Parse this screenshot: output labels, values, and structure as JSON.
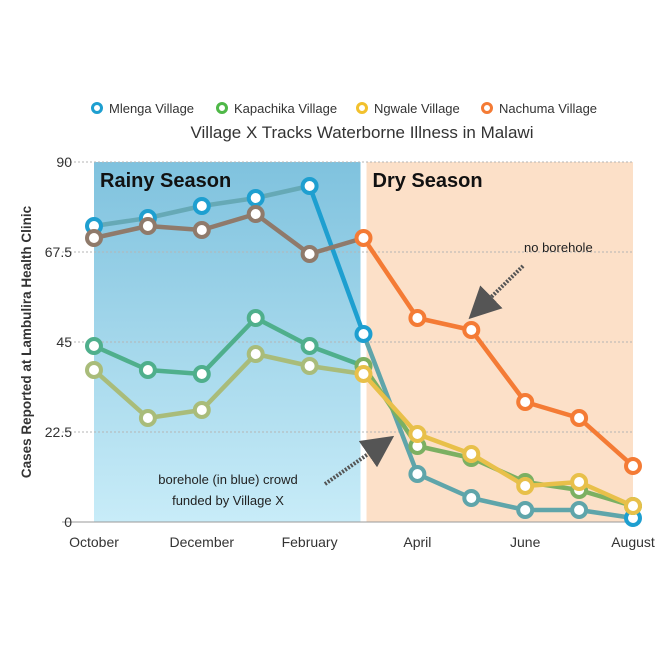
{
  "chart_data": {
    "type": "line",
    "title": "Village X Tracks Waterborne Illness in Malawi",
    "xlabel": "",
    "ylabel": "Cases Reported at Lambulira Health Clinic",
    "ylim": [
      0,
      90
    ],
    "yticks": [
      "0",
      "22.5",
      "45",
      "67.5",
      "90"
    ],
    "x": [
      "October",
      "",
      "December",
      "",
      "February",
      "",
      "April",
      "",
      "June",
      "",
      "August"
    ],
    "xtick_labels": [
      "October",
      "December",
      "February",
      "April",
      "June",
      "August"
    ],
    "grid": true,
    "legend_position": "top",
    "series": [
      {
        "name": "Mlenga Village",
        "color": "#1E9FD0",
        "values": [
          74,
          76,
          79,
          81,
          84,
          47,
          12,
          6,
          3,
          3,
          1
        ]
      },
      {
        "name": "Kapachika Village",
        "color": "#4FB848",
        "values": [
          44,
          38,
          37,
          51,
          44,
          39,
          19,
          16,
          10,
          8,
          4
        ]
      },
      {
        "name": "Ngwale Village",
        "color": "#F2C12E",
        "values": [
          38,
          26,
          28,
          42,
          39,
          37,
          22,
          17,
          9,
          10,
          4
        ]
      },
      {
        "name": "Nachuma Village",
        "color": "#F47B35",
        "values": [
          71,
          74,
          73,
          77,
          67,
          71,
          51,
          48,
          30,
          26,
          14
        ]
      }
    ],
    "regions": [
      {
        "label": "Rainy Season",
        "from": 0,
        "to": 5,
        "color_top": "#7FC2DE",
        "color_bottom": "#C8ECF8"
      },
      {
        "label": "Dry Season",
        "from": 5,
        "to": 10,
        "color": "#FCE0C8"
      }
    ],
    "annotations": [
      {
        "text": "no borehole"
      },
      {
        "text_lines": [
          "borehole (in blue) crowd",
          "funded by Village X"
        ]
      }
    ]
  }
}
